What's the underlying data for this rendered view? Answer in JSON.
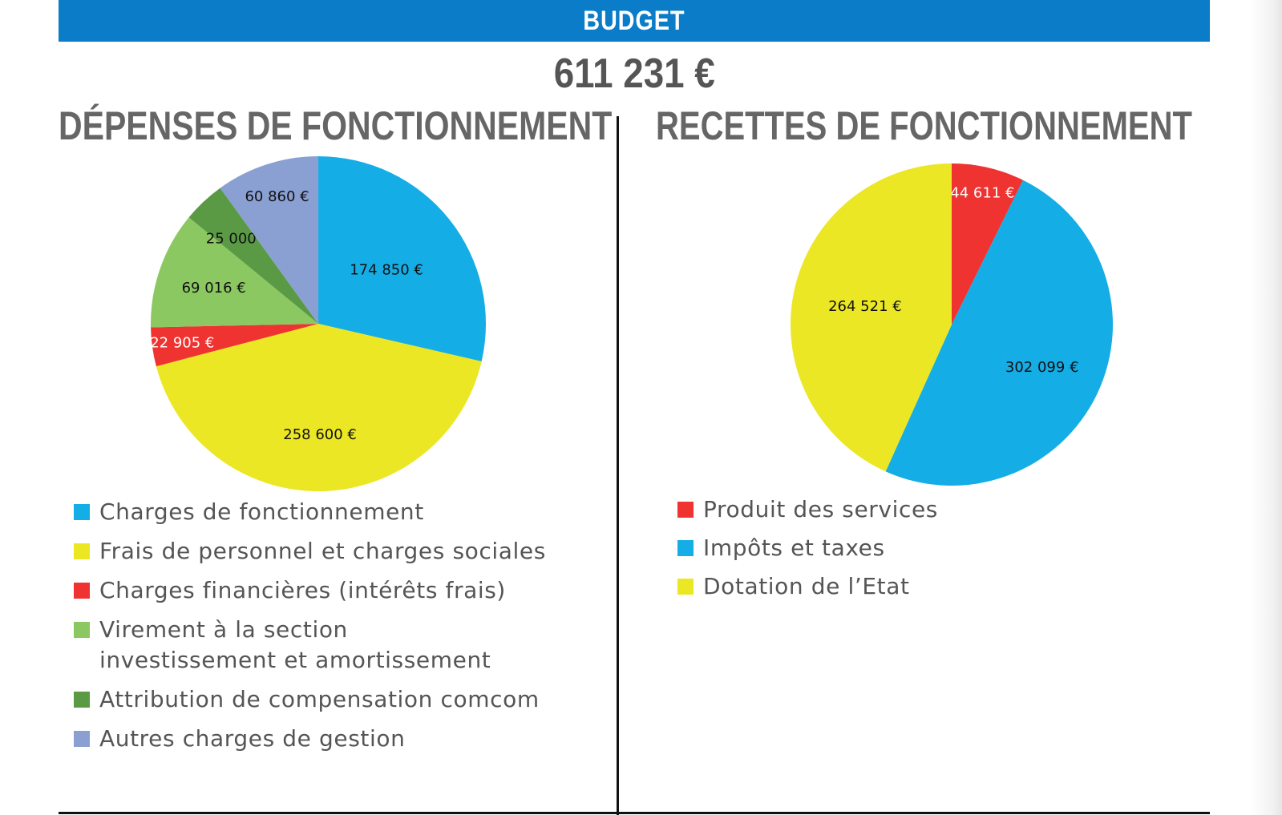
{
  "header": {
    "title": "BUDGET",
    "total": "611 231 €"
  },
  "colors": {
    "banner": "#0a7cc8",
    "blue": "#15ade6",
    "yellow": "#ece724",
    "red": "#ee3330",
    "light_green": "#8bc862",
    "dark_green": "#5a9a45",
    "lavender": "#8aa0d2"
  },
  "chart_data": [
    {
      "type": "pie",
      "title": "DÉPENSES DE FONCTIONNEMENT",
      "start": "12 o'clock",
      "direction": "clockwise",
      "slices": [
        {
          "label": "Charges de fonctionnement",
          "value": 174850,
          "display": "174 850 €",
          "color": "#15ade6",
          "label_color": "#111111"
        },
        {
          "label": "Frais de personnel et charges sociales",
          "value": 258600,
          "display": "258 600 €",
          "color": "#ece724",
          "label_color": "#111111"
        },
        {
          "label": "Charges financières  (intérêts frais)",
          "value": 22905,
          "display": "22 905 €",
          "color": "#ee3330",
          "label_color": "#ffffff"
        },
        {
          "label": "Virement à la section investissement et amortissement",
          "label_lines": [
            "Virement à la section",
            "investissement et amortissement"
          ],
          "value": 69016,
          "display": "69 016 €",
          "color": "#8bc862",
          "label_color": "#111111"
        },
        {
          "label": "Attribution de compensation comcom",
          "value": 25000,
          "display": "25 000 €",
          "color": "#5a9a45",
          "label_color": "#111111"
        },
        {
          "label": "Autres charges de gestion",
          "value": 60860,
          "display": "60 860 €",
          "color": "#8aa0d2",
          "label_color": "#111111"
        }
      ]
    },
    {
      "type": "pie",
      "title": "RECETTES DE FONCTIONNEMENT",
      "start": "12 o'clock",
      "direction": "clockwise",
      "slices": [
        {
          "label": "Produit des services",
          "value": 44611,
          "display": "44 611 €",
          "color": "#ee3330",
          "label_color": "#ffffff"
        },
        {
          "label": "Impôts et taxes",
          "value": 302099,
          "display": "302 099 €",
          "color": "#15ade6",
          "label_color": "#111111"
        },
        {
          "label": "Dotation de l’Etat",
          "value": 264521,
          "display": "264 521 €",
          "color": "#ece724",
          "label_color": "#111111"
        }
      ]
    }
  ]
}
